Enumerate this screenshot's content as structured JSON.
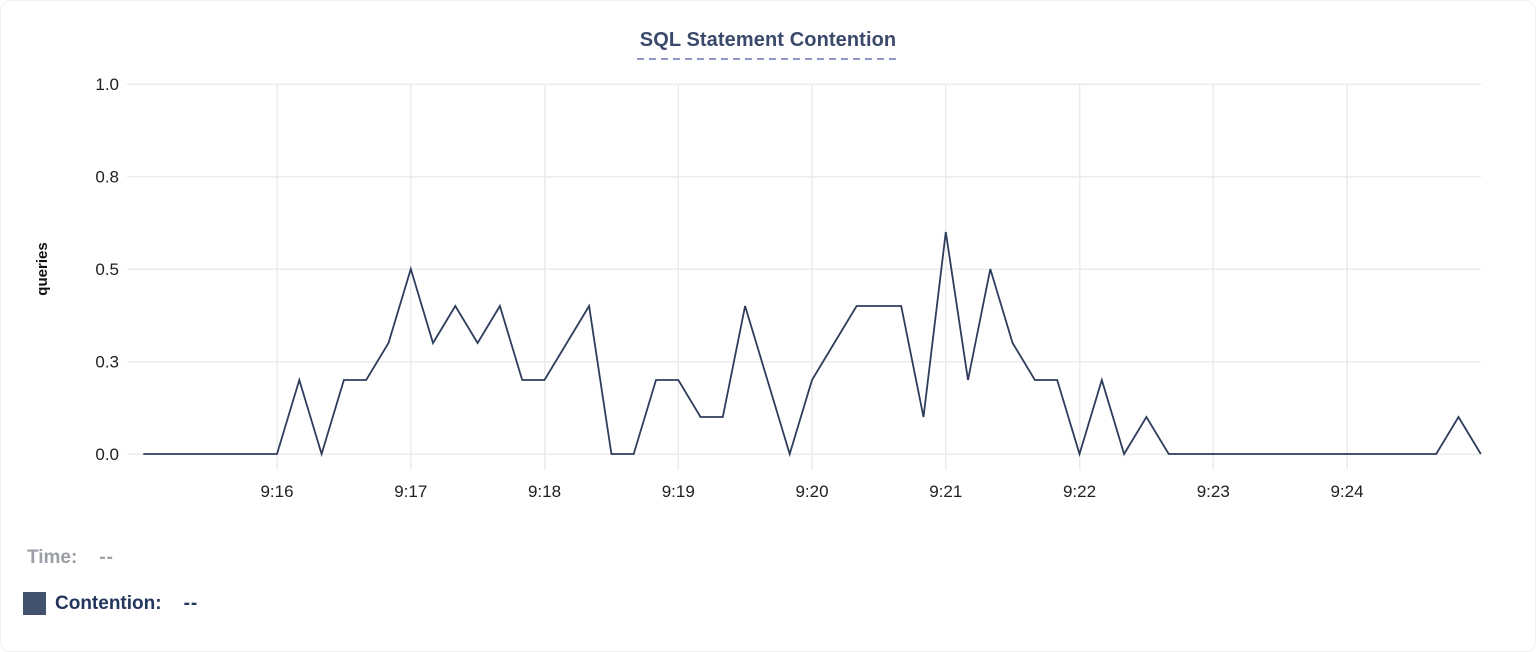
{
  "colors": {
    "line": "#2e3d5c",
    "legend_swatch": "#42516d",
    "title": "#3b4a6b",
    "title_underline": "#8e99c7",
    "grid": "#ebebed",
    "tick_label": "#202124",
    "axis_label": "#111111",
    "time_gray": "#9a9ea6",
    "navy_text": "#24355e",
    "background": "#ffffff"
  },
  "footer": {
    "time_label": "Time:",
    "time_value": "--",
    "contention_label": "Contention:",
    "contention_value": "--"
  },
  "chart_data": {
    "type": "line",
    "title": "SQL Statement Contention",
    "xlabel": "",
    "ylabel": "queries",
    "ylim": [
      0,
      1
    ],
    "grid": true,
    "legend_position": "below-left",
    "y_ticks": [
      {
        "label": "1.0",
        "value": 1.0
      },
      {
        "label": "0.8",
        "value": 0.75
      },
      {
        "label": "0.5",
        "value": 0.5
      },
      {
        "label": "0.3",
        "value": 0.25
      },
      {
        "label": "0.0",
        "value": 0.0
      }
    ],
    "x_ticks": [
      "9:16",
      "9:17",
      "9:18",
      "9:19",
      "9:20",
      "9:21",
      "9:22",
      "9:23",
      "9:24"
    ],
    "series": [
      {
        "name": "Contention",
        "color": "#2e3d5c",
        "x": [
          "9:15:00",
          "9:15:10",
          "9:15:20",
          "9:15:30",
          "9:15:40",
          "9:15:50",
          "9:16:00",
          "9:16:10",
          "9:16:20",
          "9:16:30",
          "9:16:40",
          "9:16:50",
          "9:17:00",
          "9:17:10",
          "9:17:20",
          "9:17:30",
          "9:17:40",
          "9:17:50",
          "9:18:00",
          "9:18:10",
          "9:18:20",
          "9:18:30",
          "9:18:40",
          "9:18:50",
          "9:19:00",
          "9:19:10",
          "9:19:20",
          "9:19:30",
          "9:19:40",
          "9:19:50",
          "9:20:00",
          "9:20:10",
          "9:20:20",
          "9:20:30",
          "9:20:40",
          "9:20:50",
          "9:21:00",
          "9:21:10",
          "9:21:20",
          "9:21:30",
          "9:21:40",
          "9:21:50",
          "9:22:00",
          "9:22:10",
          "9:22:20",
          "9:22:30",
          "9:22:40",
          "9:22:50",
          "9:23:00",
          "9:23:10",
          "9:23:20",
          "9:23:30",
          "9:23:40",
          "9:23:50",
          "9:24:00",
          "9:24:10",
          "9:24:20",
          "9:24:30",
          "9:24:40",
          "9:24:50",
          "9:25:00"
        ],
        "values": [
          0.0,
          0.0,
          0.0,
          0.0,
          0.0,
          0.0,
          0.0,
          0.2,
          0.0,
          0.2,
          0.2,
          0.3,
          0.5,
          0.3,
          0.4,
          0.3,
          0.4,
          0.2,
          0.2,
          0.3,
          0.4,
          0.0,
          0.0,
          0.2,
          0.2,
          0.1,
          0.1,
          0.4,
          0.2,
          0.0,
          0.2,
          0.3,
          0.4,
          0.4,
          0.4,
          0.1,
          0.6,
          0.2,
          0.5,
          0.3,
          0.2,
          0.2,
          0.0,
          0.2,
          0.0,
          0.1,
          0.0,
          0.0,
          0.0,
          0.0,
          0.0,
          0.0,
          0.0,
          0.0,
          0.0,
          0.0,
          0.0,
          0.0,
          0.0,
          0.1,
          0.0
        ]
      }
    ]
  }
}
